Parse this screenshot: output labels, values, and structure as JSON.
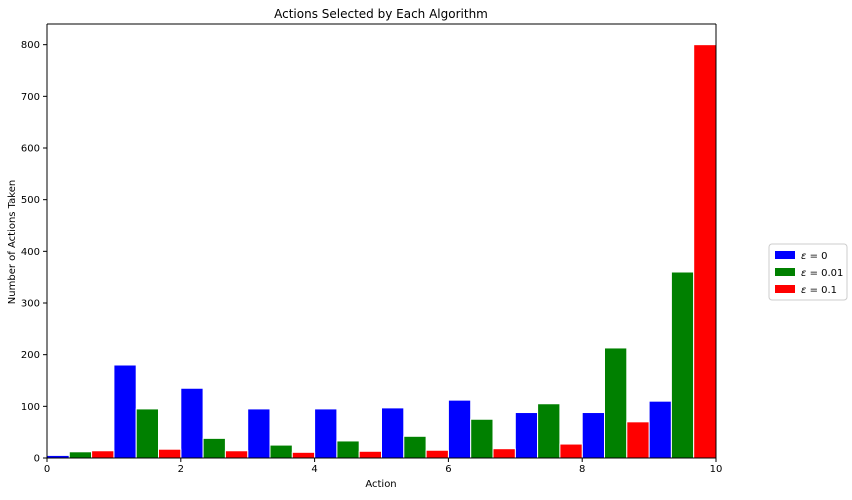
{
  "chart_data": {
    "type": "bar",
    "title": "Actions Selected by Each Algorithm",
    "xlabel": "Action",
    "ylabel": "Number of Actions Taken",
    "xlim": [
      0,
      10
    ],
    "ylim": [
      0,
      840
    ],
    "xticks": [
      "0",
      "2",
      "4",
      "6",
      "8",
      "10"
    ],
    "yticks": [
      "0",
      "100",
      "200",
      "300",
      "400",
      "500",
      "600",
      "700",
      "800"
    ],
    "grid": false,
    "legend_position": "right-outside",
    "actions": [
      0,
      1,
      2,
      3,
      4,
      5,
      6,
      7,
      8,
      9
    ],
    "series": [
      {
        "label_prefix": "ε",
        "label_suffix": " = 0",
        "color": "#0000ff",
        "values": [
          5,
          180,
          135,
          95,
          95,
          97,
          112,
          88,
          88,
          110
        ]
      },
      {
        "label_prefix": "ε",
        "label_suffix": " = 0.01",
        "color": "#008000",
        "values": [
          12,
          95,
          38,
          25,
          33,
          42,
          75,
          105,
          213,
          360
        ]
      },
      {
        "label_prefix": "ε",
        "label_suffix": " = 0.1",
        "color": "#ff0000",
        "values": [
          14,
          17,
          14,
          11,
          13,
          15,
          18,
          27,
          70,
          800
        ]
      }
    ]
  }
}
